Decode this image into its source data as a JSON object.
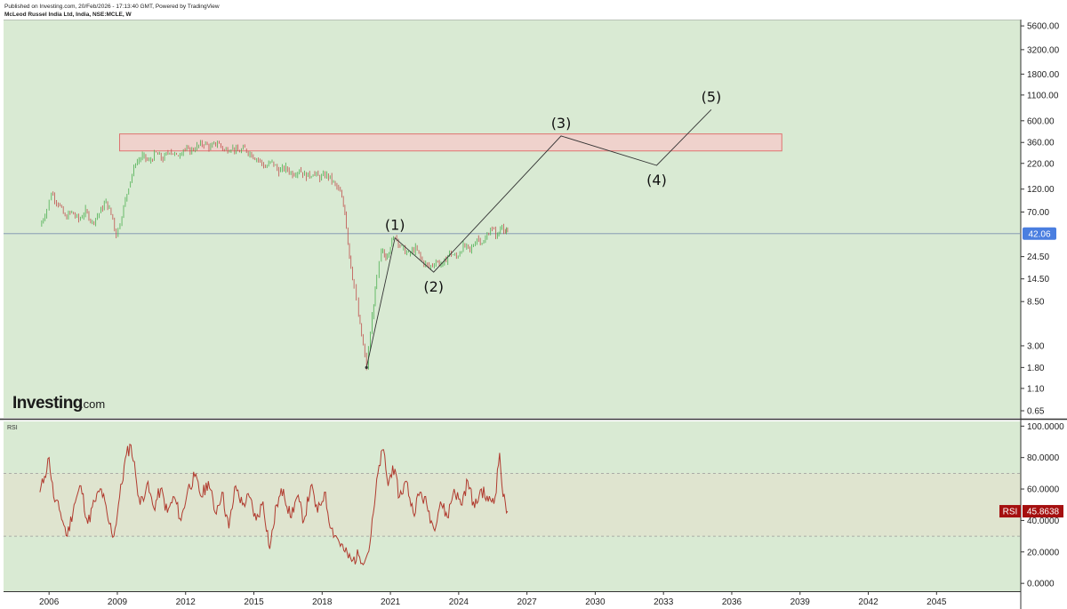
{
  "header": {
    "published": "Published on Investing.com, 20/Feb/2026 - 17:13:40 GMT, Powered by TradingView",
    "symbol": "McLeod Russel India Ltd, India, NSE:MCLE, W"
  },
  "branding": {
    "logo_main": "Investing",
    "logo_suffix": ".com"
  },
  "colors": {
    "background": "#d9ead3",
    "price_up": "#4caf50",
    "price_down": "#c0504d",
    "zone_fill": "#f2d0cc",
    "zone_stroke": "#e06666",
    "price_badge": "#4a7ee0",
    "rsi_line": "#b03a2e",
    "rsi_badge": "#a50f0f"
  },
  "chart_data": [
    {
      "type": "line",
      "panel": "price",
      "y_scale": "log",
      "y_ticks": [
        "5600.00",
        "3200.00",
        "1800.00",
        "1100.00",
        "600.00",
        "360.00",
        "220.00",
        "120.00",
        "70.00",
        "42.06",
        "24.50",
        "14.50",
        "8.50",
        "3.00",
        "1.80",
        "1.10",
        "0.65"
      ],
      "x_ticks": [
        "2006",
        "2009",
        "2012",
        "2015",
        "2018",
        "2021",
        "2024",
        "2027",
        "2030",
        "2033",
        "2036",
        "2039",
        "2042",
        "2045"
      ],
      "xlim": [
        2004.0,
        2048.7
      ],
      "ylim": [
        0.55,
        6500
      ],
      "last_price": "42.06",
      "price_series": [
        [
          2005.6,
          50
        ],
        [
          2005.9,
          75
        ],
        [
          2006.1,
          110
        ],
        [
          2006.4,
          85
        ],
        [
          2006.7,
          62
        ],
        [
          2007.0,
          70
        ],
        [
          2007.3,
          58
        ],
        [
          2007.6,
          72
        ],
        [
          2007.9,
          55
        ],
        [
          2008.2,
          68
        ],
        [
          2008.5,
          90
        ],
        [
          2008.8,
          60
        ],
        [
          2008.95,
          40
        ],
        [
          2009.2,
          65
        ],
        [
          2009.5,
          130
        ],
        [
          2009.8,
          220
        ],
        [
          2010.1,
          260
        ],
        [
          2010.4,
          230
        ],
        [
          2010.7,
          280
        ],
        [
          2011.0,
          240
        ],
        [
          2011.3,
          300
        ],
        [
          2011.6,
          260
        ],
        [
          2011.9,
          310
        ],
        [
          2012.2,
          290
        ],
        [
          2012.5,
          330
        ],
        [
          2012.8,
          350
        ],
        [
          2013.1,
          320
        ],
        [
          2013.4,
          360
        ],
        [
          2013.7,
          300
        ],
        [
          2014.0,
          320
        ],
        [
          2014.3,
          290
        ],
        [
          2014.6,
          310
        ],
        [
          2014.9,
          270
        ],
        [
          2015.2,
          240
        ],
        [
          2015.5,
          200
        ],
        [
          2015.8,
          230
        ],
        [
          2016.1,
          180
        ],
        [
          2016.4,
          200
        ],
        [
          2016.7,
          170
        ],
        [
          2017.0,
          190
        ],
        [
          2017.3,
          160
        ],
        [
          2017.6,
          175
        ],
        [
          2017.9,
          155
        ],
        [
          2018.2,
          170
        ],
        [
          2018.5,
          140
        ],
        [
          2018.8,
          110
        ],
        [
          2019.0,
          70
        ],
        [
          2019.2,
          25
        ],
        [
          2019.4,
          12
        ],
        [
          2019.6,
          6
        ],
        [
          2019.8,
          3
        ],
        [
          2019.95,
          1.8
        ],
        [
          2020.2,
          6
        ],
        [
          2020.4,
          15
        ],
        [
          2020.6,
          28
        ],
        [
          2020.8,
          24
        ],
        [
          2021.0,
          32
        ],
        [
          2021.2,
          40
        ],
        [
          2021.5,
          30
        ],
        [
          2021.8,
          26
        ],
        [
          2022.1,
          30
        ],
        [
          2022.4,
          22
        ],
        [
          2022.7,
          19
        ],
        [
          2023.0,
          22
        ],
        [
          2023.3,
          20
        ],
        [
          2023.6,
          27
        ],
        [
          2023.9,
          24
        ],
        [
          2024.2,
          32
        ],
        [
          2024.5,
          28
        ],
        [
          2024.8,
          38
        ],
        [
          2025.1,
          34
        ],
        [
          2025.4,
          48
        ],
        [
          2025.7,
          40
        ],
        [
          2025.9,
          52
        ],
        [
          2026.05,
          44
        ],
        [
          2026.15,
          42
        ]
      ],
      "resistance_zone": {
        "x_start": 2009.1,
        "x_end": 2038.2,
        "y_low": 295,
        "y_high": 440
      },
      "wave_path": [
        [
          2019.95,
          1.8
        ],
        [
          2021.2,
          38
        ],
        [
          2022.9,
          17
        ],
        [
          2028.5,
          420
        ],
        [
          2032.7,
          210
        ],
        [
          2035.1,
          780
        ]
      ],
      "wave_labels": [
        {
          "text": "(1)",
          "x": 2021.2,
          "y": 38,
          "pos": "above"
        },
        {
          "text": "(2)",
          "x": 2022.9,
          "y": 17,
          "pos": "below"
        },
        {
          "text": "(3)",
          "x": 2028.5,
          "y": 420,
          "pos": "above"
        },
        {
          "text": "(4)",
          "x": 2032.7,
          "y": 210,
          "pos": "below"
        },
        {
          "text": "(5)",
          "x": 2035.1,
          "y": 780,
          "pos": "above"
        }
      ]
    },
    {
      "type": "line",
      "panel": "rsi",
      "title": "RSI",
      "ylim": [
        -5,
        103
      ],
      "y_ticks": [
        "100.0000",
        "80.0000",
        "60.0000",
        "40.0000",
        "20.0000",
        "0.0000"
      ],
      "bands": [
        30,
        70
      ],
      "last_value": "45.8638",
      "badge_label": "RSI",
      "rsi_series": [
        [
          2005.6,
          58
        ],
        [
          2005.8,
          68
        ],
        [
          2006.0,
          80
        ],
        [
          2006.2,
          55
        ],
        [
          2006.5,
          45
        ],
        [
          2006.8,
          30
        ],
        [
          2007.1,
          50
        ],
        [
          2007.4,
          62
        ],
        [
          2007.7,
          38
        ],
        [
          2008.0,
          52
        ],
        [
          2008.3,
          60
        ],
        [
          2008.6,
          40
        ],
        [
          2008.85,
          30
        ],
        [
          2009.1,
          55
        ],
        [
          2009.4,
          82
        ],
        [
          2009.6,
          88
        ],
        [
          2009.8,
          70
        ],
        [
          2010.0,
          50
        ],
        [
          2010.3,
          63
        ],
        [
          2010.6,
          48
        ],
        [
          2010.9,
          60
        ],
        [
          2011.2,
          45
        ],
        [
          2011.5,
          55
        ],
        [
          2011.8,
          40
        ],
        [
          2012.1,
          60
        ],
        [
          2012.4,
          68
        ],
        [
          2012.7,
          55
        ],
        [
          2013.0,
          65
        ],
        [
          2013.3,
          45
        ],
        [
          2013.6,
          58
        ],
        [
          2013.9,
          35
        ],
        [
          2014.2,
          62
        ],
        [
          2014.5,
          50
        ],
        [
          2014.8,
          55
        ],
        [
          2015.1,
          40
        ],
        [
          2015.4,
          52
        ],
        [
          2015.7,
          22
        ],
        [
          2016.0,
          50
        ],
        [
          2016.3,
          60
        ],
        [
          2016.6,
          42
        ],
        [
          2016.9,
          55
        ],
        [
          2017.2,
          40
        ],
        [
          2017.5,
          62
        ],
        [
          2017.8,
          45
        ],
        [
          2018.1,
          58
        ],
        [
          2018.4,
          35
        ],
        [
          2018.7,
          28
        ],
        [
          2019.0,
          20
        ],
        [
          2019.3,
          14
        ],
        [
          2019.6,
          18
        ],
        [
          2019.9,
          15
        ],
        [
          2020.1,
          25
        ],
        [
          2020.3,
          50
        ],
        [
          2020.5,
          75
        ],
        [
          2020.7,
          85
        ],
        [
          2020.9,
          62
        ],
        [
          2021.1,
          75
        ],
        [
          2021.4,
          55
        ],
        [
          2021.7,
          65
        ],
        [
          2022.0,
          45
        ],
        [
          2022.3,
          58
        ],
        [
          2022.6,
          50
        ],
        [
          2022.9,
          35
        ],
        [
          2023.2,
          52
        ],
        [
          2023.5,
          42
        ],
        [
          2023.8,
          60
        ],
        [
          2024.1,
          50
        ],
        [
          2024.4,
          65
        ],
        [
          2024.7,
          48
        ],
        [
          2025.0,
          60
        ],
        [
          2025.3,
          52
        ],
        [
          2025.6,
          55
        ],
        [
          2025.8,
          83
        ],
        [
          2025.95,
          55
        ],
        [
          2026.15,
          45.86
        ]
      ]
    }
  ]
}
